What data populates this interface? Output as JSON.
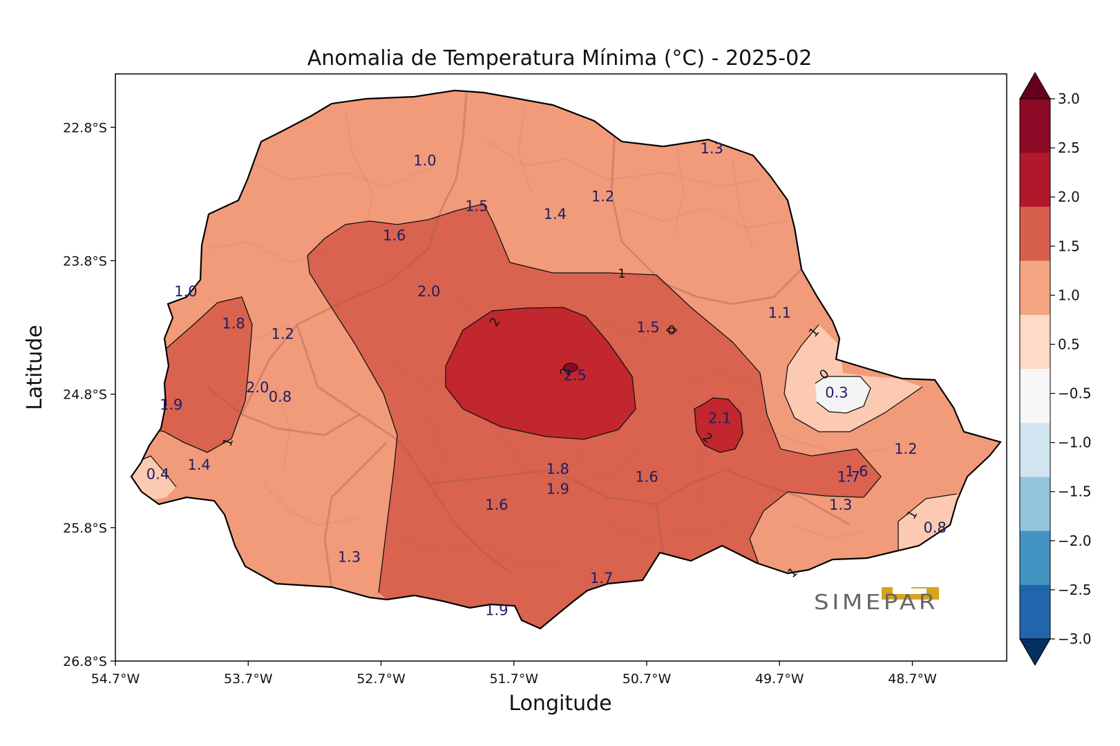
{
  "title": "Anomalia de Temperatura Mínima (°C) - 2025-02",
  "xlabel": "Longitude",
  "ylabel": "Latitude",
  "x_ticks": [
    "54.7°W",
    "53.7°W",
    "52.7°W",
    "51.7°W",
    "50.7°W",
    "49.7°W",
    "48.7°W"
  ],
  "y_ticks": [
    "22.8°S",
    "23.8°S",
    "24.8°S",
    "25.8°S",
    "26.8°S"
  ],
  "colorbar": {
    "ticks": [
      "3.0",
      "2.5",
      "2.0",
      "1.5",
      "1.0",
      "0.5",
      "−0.5",
      "−1.0",
      "−1.5",
      "−2.0",
      "−2.5",
      "−3.0"
    ],
    "colors": [
      "#67001f",
      "#8b0a25",
      "#b2182b",
      "#d6604d",
      "#f4a582",
      "#fddbc7",
      "#f7f7f7",
      "#d1e5f0",
      "#92c5de",
      "#4393c3",
      "#2166ac",
      "#053061"
    ]
  },
  "logo_text": "SIMEPAR",
  "contour_labels": [
    "1",
    "1",
    "1",
    "1",
    "1",
    "2",
    "2",
    "2",
    "0",
    "0"
  ],
  "chart_data": {
    "type": "map",
    "title": "Anomalia de Temperatura Mínima (°C) - 2025-02",
    "xlabel": "Longitude",
    "ylabel": "Latitude",
    "xlim": [
      -54.7,
      -47.99
    ],
    "ylim": [
      -26.8,
      -22.4
    ],
    "levels": [
      -3.0,
      -2.5,
      -2.0,
      -1.5,
      -1.0,
      -0.5,
      0.5,
      1.0,
      1.5,
      2.0,
      2.5,
      3.0
    ],
    "stations": [
      {
        "lon": -52.37,
        "lat": -23.05,
        "value": "1.0"
      },
      {
        "lon": -50.21,
        "lat": -22.96,
        "value": "1.3"
      },
      {
        "lon": -51.03,
        "lat": -23.32,
        "value": "1.2"
      },
      {
        "lon": -51.98,
        "lat": -23.39,
        "value": "1.5"
      },
      {
        "lon": -51.39,
        "lat": -23.45,
        "value": "1.4"
      },
      {
        "lon": -52.6,
        "lat": -23.61,
        "value": "1.6"
      },
      {
        "lon": -52.34,
        "lat": -24.03,
        "value": "2.0"
      },
      {
        "lon": -54.17,
        "lat": -24.03,
        "value": "1.0"
      },
      {
        "lon": -53.81,
        "lat": -24.27,
        "value": "1.8"
      },
      {
        "lon": -53.44,
        "lat": -24.35,
        "value": "1.2"
      },
      {
        "lon": -50.69,
        "lat": -24.3,
        "value": "1.5"
      },
      {
        "lon": -49.7,
        "lat": -24.19,
        "value": "1.1"
      },
      {
        "lon": -51.24,
        "lat": -24.66,
        "value": "2.5"
      },
      {
        "lon": -53.63,
        "lat": -24.75,
        "value": "2.0"
      },
      {
        "lon": -53.46,
        "lat": -24.82,
        "value": "0.8"
      },
      {
        "lon": -54.28,
        "lat": -24.88,
        "value": "1.9"
      },
      {
        "lon": -49.27,
        "lat": -24.79,
        "value": "0.3"
      },
      {
        "lon": -50.15,
        "lat": -24.98,
        "value": "2.1"
      },
      {
        "lon": -54.38,
        "lat": -25.4,
        "value": "0.4"
      },
      {
        "lon": -54.07,
        "lat": -25.33,
        "value": "1.4"
      },
      {
        "lon": -51.37,
        "lat": -25.36,
        "value": "1.8"
      },
      {
        "lon": -51.37,
        "lat": -25.51,
        "value": "1.9"
      },
      {
        "lon": -50.7,
        "lat": -25.42,
        "value": "1.6"
      },
      {
        "lon": -49.12,
        "lat": -25.38,
        "value": "1.6"
      },
      {
        "lon": -49.18,
        "lat": -25.42,
        "value": "1.7"
      },
      {
        "lon": -48.75,
        "lat": -25.21,
        "value": "1.2"
      },
      {
        "lon": -51.83,
        "lat": -25.63,
        "value": "1.6"
      },
      {
        "lon": -49.24,
        "lat": -25.63,
        "value": "1.3"
      },
      {
        "lon": -48.53,
        "lat": -25.8,
        "value": "0.8"
      },
      {
        "lon": -52.94,
        "lat": -26.02,
        "value": "1.3"
      },
      {
        "lon": -51.04,
        "lat": -26.18,
        "value": "1.7"
      },
      {
        "lon": -51.83,
        "lat": -26.42,
        "value": "1.9"
      }
    ]
  }
}
